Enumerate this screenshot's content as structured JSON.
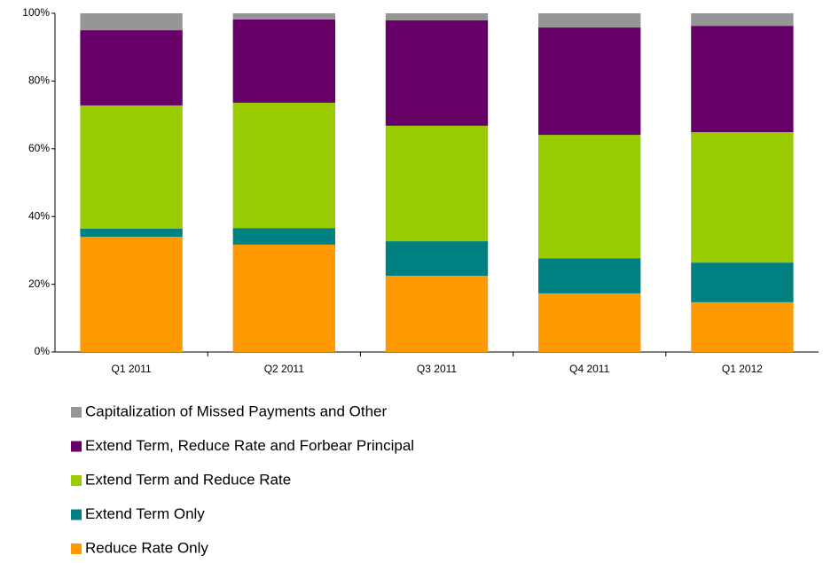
{
  "chart_data": {
    "type": "stacked-bar",
    "categories": [
      "Q1 2011",
      "Q2 2011",
      "Q3 2011",
      "Q4 2011",
      "Q1 2012"
    ],
    "series": [
      {
        "name": "Reduce Rate Only",
        "color": "#ff9900",
        "values": [
          34.0,
          31.7,
          22.5,
          17.3,
          14.7
        ]
      },
      {
        "name": "Extend Term Only",
        "color": "#008080",
        "values": [
          2.4,
          4.9,
          10.2,
          10.4,
          11.7
        ]
      },
      {
        "name": "Extend Term and Reduce Rate",
        "color": "#99cc00",
        "values": [
          36.4,
          37.0,
          34.1,
          36.4,
          38.5
        ]
      },
      {
        "name": "Extend Term, Reduce Rate and Forbear Principal",
        "color": "#660066",
        "values": [
          22.2,
          24.6,
          31.1,
          31.7,
          31.4
        ]
      },
      {
        "name": "Capitalization of Missed Payments and Other",
        "color": "#969696",
        "values": [
          5.0,
          1.8,
          2.1,
          4.2,
          3.7
        ]
      }
    ],
    "ylim": [
      0,
      100
    ],
    "yticks": [
      {
        "value": 0,
        "label": "0%"
      },
      {
        "value": 20,
        "label": "20%"
      },
      {
        "value": 40,
        "label": "40%"
      },
      {
        "value": 60,
        "label": "60%"
      },
      {
        "value": 80,
        "label": "80%"
      },
      {
        "value": 100,
        "label": "100%"
      }
    ],
    "legend": "bottom"
  }
}
